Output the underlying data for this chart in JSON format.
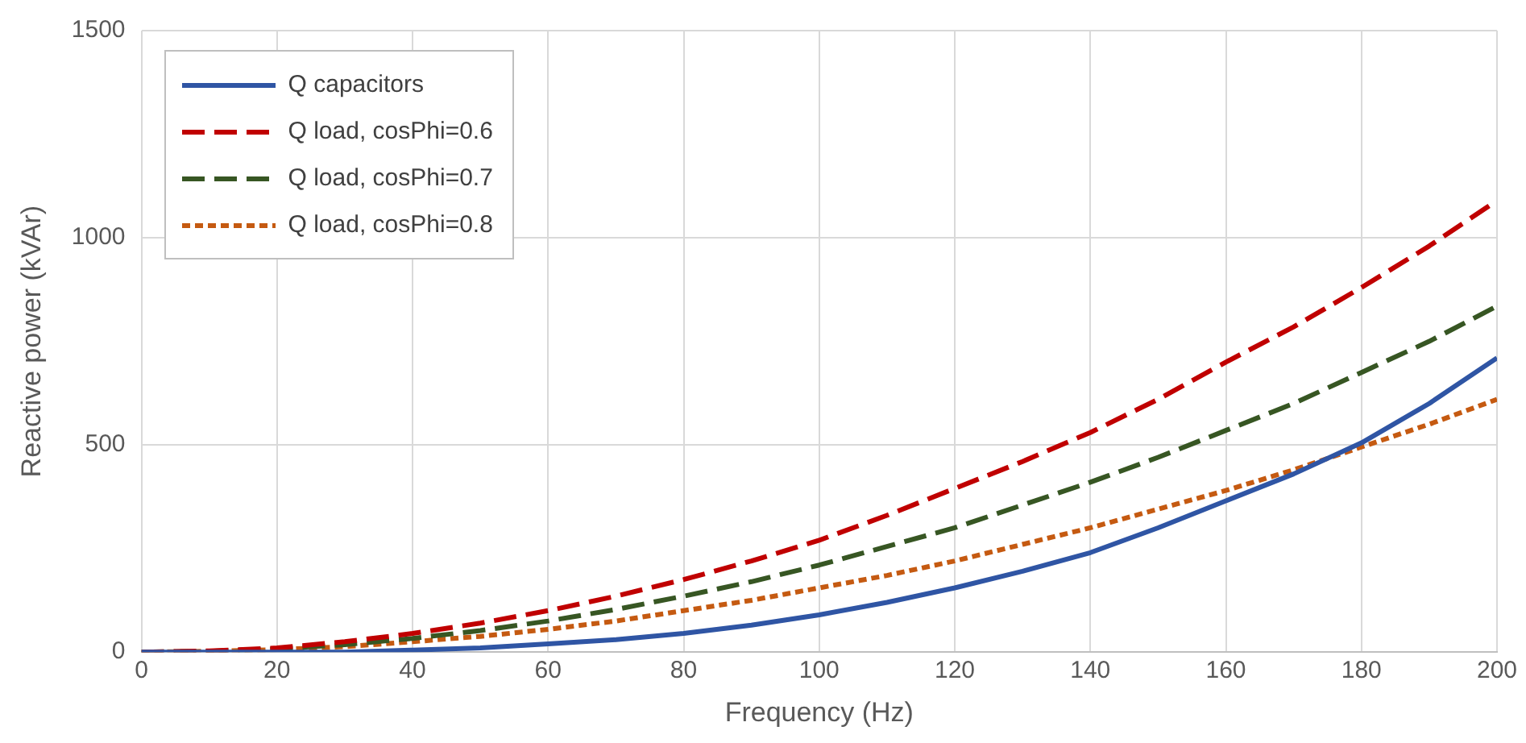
{
  "chart_data": {
    "type": "line",
    "xlabel": "Frequency (Hz)",
    "ylabel": "Reactive power (kVAr)",
    "x": [
      0,
      10,
      20,
      30,
      40,
      50,
      60,
      70,
      80,
      90,
      100,
      110,
      120,
      130,
      140,
      150,
      160,
      170,
      180,
      190,
      200
    ],
    "xlim": [
      0,
      200
    ],
    "xticks": [
      0,
      20,
      40,
      60,
      80,
      100,
      120,
      140,
      160,
      180,
      200
    ],
    "ylim": [
      0,
      1500
    ],
    "yticks": [
      0,
      500,
      1000,
      1500
    ],
    "grid": true,
    "legend": "top left",
    "marker": "none",
    "series": [
      {
        "name": "Q capacitors",
        "color": "#2f55a4",
        "line_style": "solid",
        "values": [
          0,
          0,
          0,
          0,
          5,
          10,
          20,
          30,
          45,
          65,
          90,
          120,
          155,
          195,
          240,
          300,
          365,
          430,
          505,
          600,
          710
        ]
      },
      {
        "name": "Q load, cosPhi=0.6",
        "color": "#c00000",
        "line_style": "dashed",
        "values": [
          0,
          3,
          10,
          25,
          45,
          70,
          100,
          135,
          175,
          220,
          270,
          330,
          395,
          460,
          530,
          610,
          700,
          785,
          880,
          980,
          1090
        ]
      },
      {
        "name": "Q load, cosPhi=0.7",
        "color": "#375623",
        "line_style": "dashed",
        "values": [
          0,
          2,
          8,
          18,
          33,
          52,
          75,
          103,
          135,
          170,
          210,
          255,
          300,
          355,
          410,
          470,
          535,
          600,
          675,
          750,
          835
        ]
      },
      {
        "name": "Q load, cosPhi=0.8",
        "color": "#c55a11",
        "line_style": "dotted",
        "values": [
          0,
          2,
          6,
          13,
          25,
          38,
          55,
          75,
          100,
          125,
          155,
          185,
          220,
          260,
          300,
          345,
          390,
          440,
          495,
          550,
          610
        ]
      }
    ]
  }
}
